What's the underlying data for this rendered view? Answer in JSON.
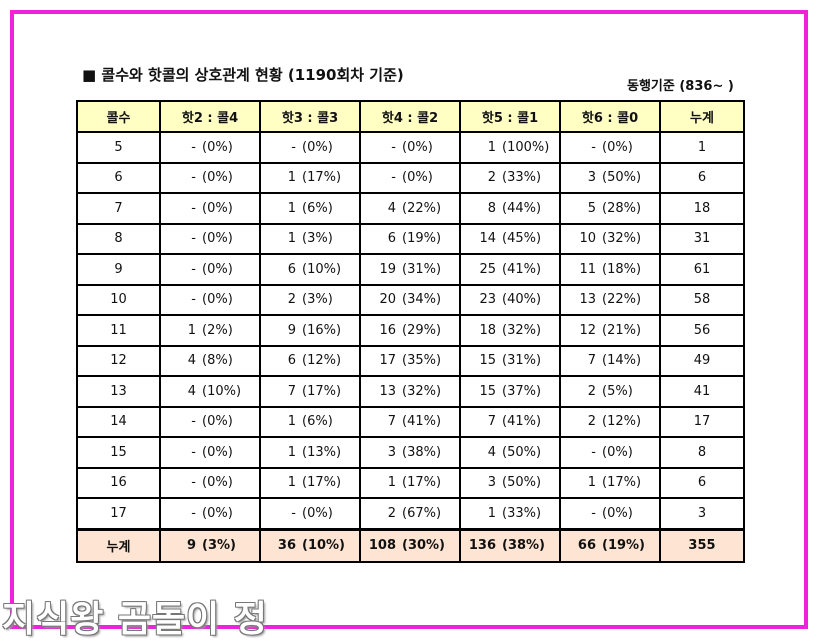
{
  "title": "■ 콜수와 핫콜의 상호관계 현황 (1190회차 기준)",
  "subnote": "동행기준 (836~ )",
  "table": {
    "headers": [
      "콜수",
      "핫2 : 콜4",
      "핫3 : 콜3",
      "핫4 : 콜2",
      "핫5 : 콜1",
      "핫6 : 콜0",
      "누계"
    ],
    "rows": [
      {
        "label": "5",
        "cells": [
          [
            "-",
            "(0%)"
          ],
          [
            "-",
            "(0%)"
          ],
          [
            "-",
            "(0%)"
          ],
          [
            "1",
            "(100%)"
          ],
          [
            "-",
            "(0%)"
          ]
        ],
        "total": "1"
      },
      {
        "label": "6",
        "cells": [
          [
            "-",
            "(0%)"
          ],
          [
            "1",
            "(17%)"
          ],
          [
            "-",
            "(0%)"
          ],
          [
            "2",
            "(33%)"
          ],
          [
            "3",
            "(50%)"
          ]
        ],
        "total": "6"
      },
      {
        "label": "7",
        "cells": [
          [
            "-",
            "(0%)"
          ],
          [
            "1",
            "(6%)"
          ],
          [
            "4",
            "(22%)"
          ],
          [
            "8",
            "(44%)"
          ],
          [
            "5",
            "(28%)"
          ]
        ],
        "total": "18"
      },
      {
        "label": "8",
        "cells": [
          [
            "-",
            "(0%)"
          ],
          [
            "1",
            "(3%)"
          ],
          [
            "6",
            "(19%)"
          ],
          [
            "14",
            "(45%)"
          ],
          [
            "10",
            "(32%)"
          ]
        ],
        "total": "31"
      },
      {
        "label": "9",
        "cells": [
          [
            "-",
            "(0%)"
          ],
          [
            "6",
            "(10%)"
          ],
          [
            "19",
            "(31%)"
          ],
          [
            "25",
            "(41%)"
          ],
          [
            "11",
            "(18%)"
          ]
        ],
        "total": "61"
      },
      {
        "label": "10",
        "cells": [
          [
            "-",
            "(0%)"
          ],
          [
            "2",
            "(3%)"
          ],
          [
            "20",
            "(34%)"
          ],
          [
            "23",
            "(40%)"
          ],
          [
            "13",
            "(22%)"
          ]
        ],
        "total": "58"
      },
      {
        "label": "11",
        "cells": [
          [
            "1",
            "(2%)"
          ],
          [
            "9",
            "(16%)"
          ],
          [
            "16",
            "(29%)"
          ],
          [
            "18",
            "(32%)"
          ],
          [
            "12",
            "(21%)"
          ]
        ],
        "total": "56"
      },
      {
        "label": "12",
        "cells": [
          [
            "4",
            "(8%)"
          ],
          [
            "6",
            "(12%)"
          ],
          [
            "17",
            "(35%)"
          ],
          [
            "15",
            "(31%)"
          ],
          [
            "7",
            "(14%)"
          ]
        ],
        "total": "49"
      },
      {
        "label": "13",
        "cells": [
          [
            "4",
            "(10%)"
          ],
          [
            "7",
            "(17%)"
          ],
          [
            "13",
            "(32%)"
          ],
          [
            "15",
            "(37%)"
          ],
          [
            "2",
            "(5%)"
          ]
        ],
        "total": "41"
      },
      {
        "label": "14",
        "cells": [
          [
            "-",
            "(0%)"
          ],
          [
            "1",
            "(6%)"
          ],
          [
            "7",
            "(41%)"
          ],
          [
            "7",
            "(41%)"
          ],
          [
            "2",
            "(12%)"
          ]
        ],
        "total": "17"
      },
      {
        "label": "15",
        "cells": [
          [
            "-",
            "(0%)"
          ],
          [
            "1",
            "(13%)"
          ],
          [
            "3",
            "(38%)"
          ],
          [
            "4",
            "(50%)"
          ],
          [
            "-",
            "(0%)"
          ]
        ],
        "total": "8"
      },
      {
        "label": "16",
        "cells": [
          [
            "-",
            "(0%)"
          ],
          [
            "1",
            "(17%)"
          ],
          [
            "1",
            "(17%)"
          ],
          [
            "3",
            "(50%)"
          ],
          [
            "1",
            "(17%)"
          ]
        ],
        "total": "6"
      },
      {
        "label": "17",
        "cells": [
          [
            "-",
            "(0%)"
          ],
          [
            "-",
            "(0%)"
          ],
          [
            "2",
            "(67%)"
          ],
          [
            "1",
            "(33%)"
          ],
          [
            "-",
            "(0%)"
          ]
        ],
        "total": "3"
      }
    ],
    "footer": {
      "label": "누계",
      "cells": [
        [
          "9",
          "(3%)"
        ],
        [
          "36",
          "(10%)"
        ],
        [
          "108",
          "(30%)"
        ],
        [
          "136",
          "(38%)"
        ],
        [
          "66",
          "(19%)"
        ]
      ],
      "total": "355"
    }
  },
  "watermark": "지식왕 곰돌이 정",
  "colors": {
    "frame_border": "#ee22dd",
    "header_bg": "#ffffc4",
    "footer_bg": "#fde4d3"
  }
}
